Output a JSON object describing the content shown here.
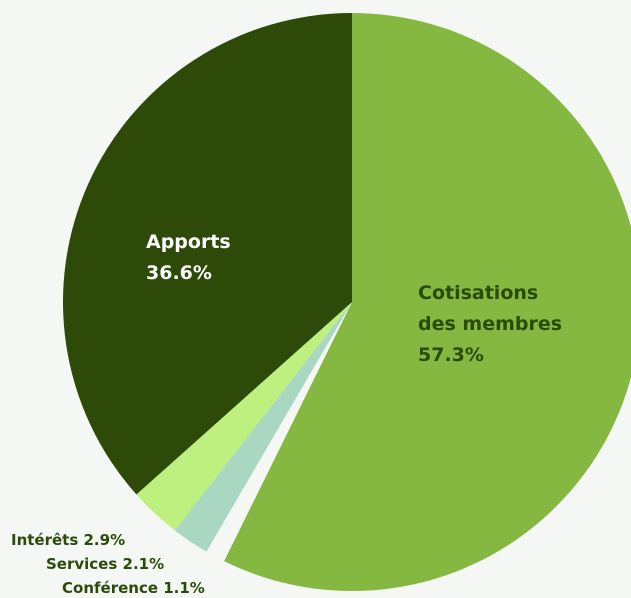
{
  "chart_data": {
    "type": "pie",
    "title": "",
    "slices": [
      {
        "label": [
          "Cotisations",
          "des membres"
        ],
        "value": 57.3,
        "value_label": "57.3%",
        "color": "#84b840",
        "label_color": "#2b4b0a"
      },
      {
        "label": [
          "Conférence"
        ],
        "value": 1.1,
        "value_label": "1.1%",
        "color": "#f4f7f4",
        "label_color": "#2b4b0a"
      },
      {
        "label": [
          "Services"
        ],
        "value": 2.1,
        "value_label": "2.1%",
        "color": "#a9d7c1",
        "label_color": "#2b4b0a"
      },
      {
        "label": [
          "Intérêts"
        ],
        "value": 2.9,
        "value_label": "2.9%",
        "color": "#bdf07f",
        "label_color": "#2b4b0a"
      },
      {
        "label": [
          "Apports"
        ],
        "value": 36.6,
        "value_label": "36.6%",
        "color": "#2d4a09",
        "label_color": "#ffffff"
      }
    ]
  }
}
